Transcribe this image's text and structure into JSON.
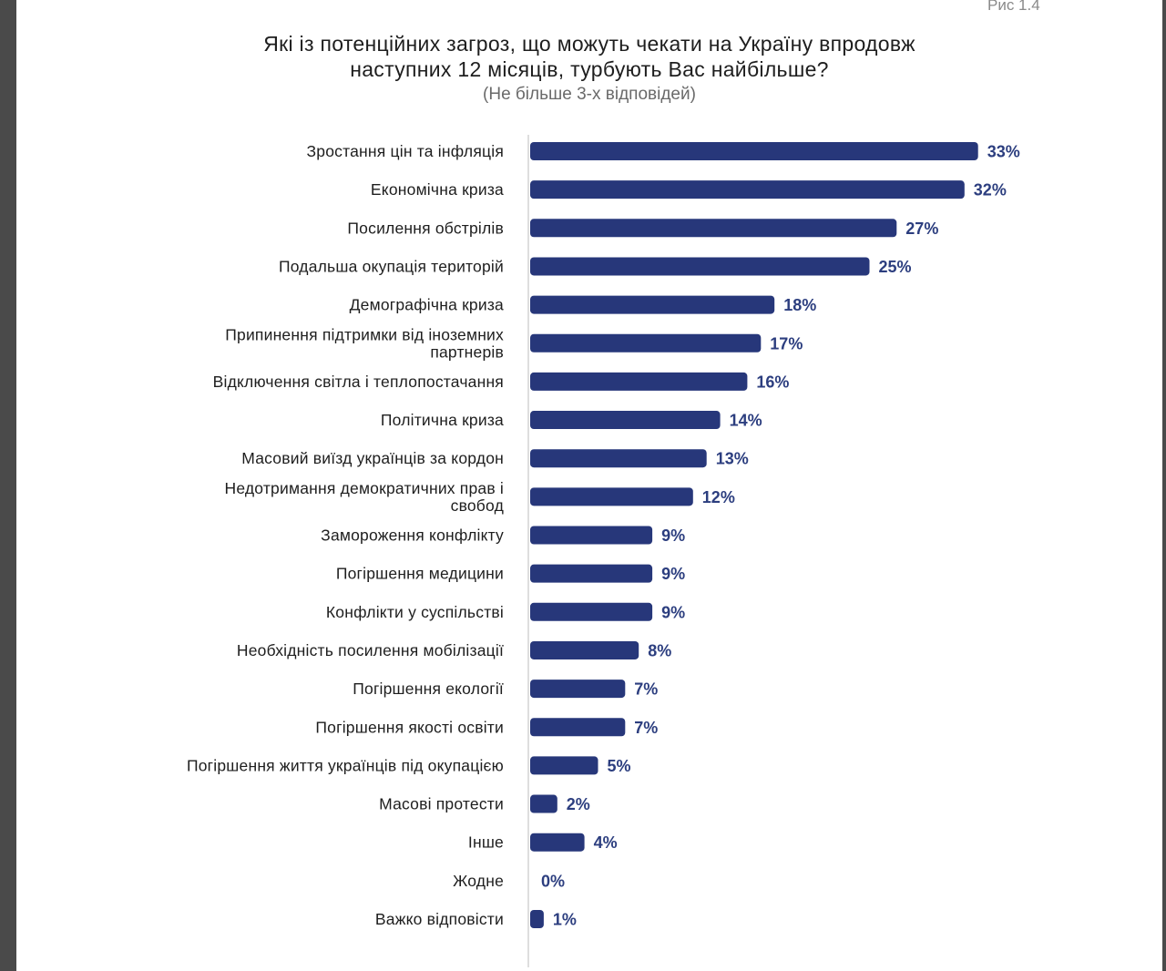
{
  "figure_label": "Рис 1.4",
  "chart_data": {
    "type": "bar",
    "orientation": "horizontal",
    "title_lines": [
      "Які із потенційних загроз, що можуть чекати на Україну впродовж",
      "наступних 12 місяців, турбують Вас найбільше?"
    ],
    "subtitle": "(Не більше 3-х відповідей)",
    "unit": "%",
    "xlim": [
      0,
      33
    ],
    "grid": false,
    "legend": "none",
    "bar_color": "#27377a",
    "value_label_color": "#2c3e7f",
    "categories": [
      [
        "Зростання цін та інфляція"
      ],
      [
        "Економічна криза"
      ],
      [
        "Посилення обстрілів"
      ],
      [
        "Подальша окупація територій"
      ],
      [
        "Демографічна криза"
      ],
      [
        "Припинення підтримки від іноземних",
        "партнерів"
      ],
      [
        "Відключення світла і теплопостачання"
      ],
      [
        "Політична криза"
      ],
      [
        "Масовий виїзд українців за кордон"
      ],
      [
        "Недотримання демократичних прав і",
        "свобод"
      ],
      [
        "Замороження конфлікту"
      ],
      [
        "Погіршення медицини"
      ],
      [
        "Конфлікти у суспільстві"
      ],
      [
        "Необхідність посилення мобілізації"
      ],
      [
        "Погіршення екології"
      ],
      [
        "Погіршення якості освіти"
      ],
      [
        "Погіршення життя українців під окупацією"
      ],
      [
        "Масові протести"
      ],
      [
        "Інше"
      ],
      [
        "Жодне"
      ],
      [
        "Важко відповісти"
      ]
    ],
    "values": [
      33,
      32,
      27,
      25,
      18,
      17,
      16,
      14,
      13,
      12,
      9,
      9,
      9,
      8,
      7,
      7,
      5,
      2,
      4,
      0,
      1
    ],
    "value_labels": [
      "33%",
      "32%",
      "27%",
      "25%",
      "18%",
      "17%",
      "16%",
      "14%",
      "13%",
      "12%",
      "9%",
      "9%",
      "9%",
      "8%",
      "7%",
      "7%",
      "5%",
      "2%",
      "4%",
      "0%",
      "1%"
    ]
  }
}
